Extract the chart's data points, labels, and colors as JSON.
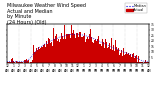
{
  "actual_color": "#cc0000",
  "median_color": "#0000dd",
  "background_color": "#ffffff",
  "ylim": [
    0,
    35
  ],
  "xlim": [
    0,
    1440
  ],
  "n_points": 1440,
  "grid_color": "#bbbbbb",
  "legend_actual_label": "Actual",
  "legend_median_label": "Median",
  "tick_fontsize": 2.2,
  "title_fontsize": 3.5,
  "title_lines": [
    "Milwaukee Weather Wind Speed",
    "Actual and Median",
    "by Minute",
    "(24 Hours) (Old)"
  ],
  "yticks": [
    5,
    10,
    15,
    20,
    25,
    30,
    35
  ],
  "n_vgrid": 13,
  "seed": 42
}
